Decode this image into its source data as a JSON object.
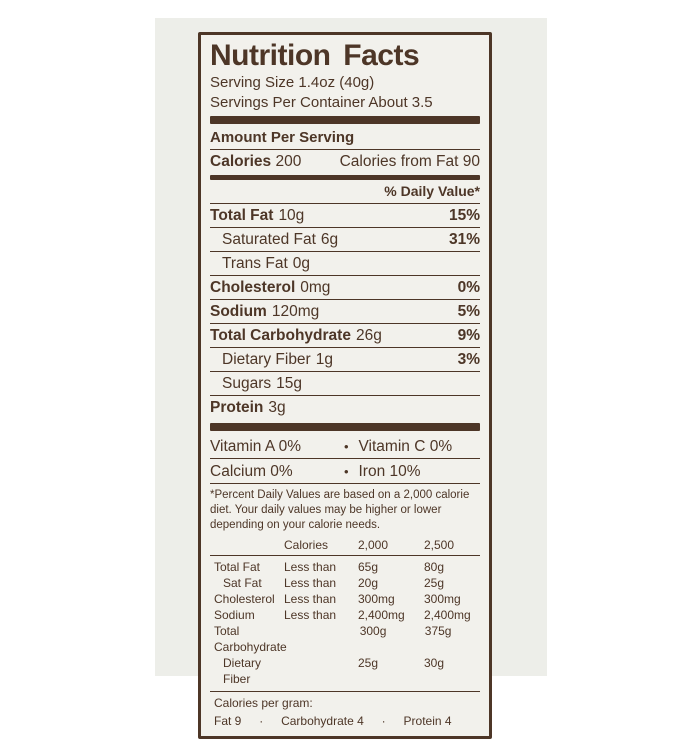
{
  "label": {
    "title": "Nutrition Facts",
    "serving_size": "Serving Size 1.4oz (40g)",
    "servings_per_container": "Servings Per Container About 3.5",
    "amount_per_serving": "Amount Per Serving",
    "calories_label": "Calories",
    "calories_value": "200",
    "calories_from_fat": "Calories from Fat 90",
    "daily_value_header": "% Daily Value*",
    "bullet": "•",
    "dot": "·",
    "nutrients": [
      {
        "name": "Total Fat",
        "amount": "10g",
        "dv": "15%"
      },
      {
        "name": "Saturated Fat",
        "amount": "6g",
        "dv": "31%"
      },
      {
        "name": "Trans Fat",
        "amount": "0g",
        "dv": ""
      },
      {
        "name": "Cholesterol",
        "amount": "0mg",
        "dv": "0%"
      },
      {
        "name": "Sodium",
        "amount": "120mg",
        "dv": "5%"
      },
      {
        "name": "Total Carbohydrate",
        "amount": "26g",
        "dv": "9%"
      },
      {
        "name": "Dietary Fiber",
        "amount": "1g",
        "dv": "3%"
      },
      {
        "name": "Sugars",
        "amount": "15g",
        "dv": ""
      },
      {
        "name": "Protein",
        "amount": "3g",
        "dv": ""
      }
    ],
    "vitamins": [
      {
        "left": "Vitamin A 0%",
        "right": "Vitamin C 0%"
      },
      {
        "left": "Calcium 0%",
        "right": "Iron 10%"
      }
    ],
    "footnote": "*Percent Daily Values are based on a 2,000 calorie diet. Your daily values may be higher or lower depending on your calorie needs.",
    "dv_table": {
      "header": [
        "Calories",
        "2,000",
        "2,500"
      ],
      "rows": [
        {
          "name": "Total Fat",
          "qualifier": "Less than",
          "v2000": "65g",
          "v2500": "80g"
        },
        {
          "name": "Sat Fat",
          "qualifier": "Less than",
          "v2000": "20g",
          "v2500": "25g"
        },
        {
          "name": "Cholesterol",
          "qualifier": "Less than",
          "v2000": "300mg",
          "v2500": "300mg"
        },
        {
          "name": "Sodium",
          "qualifier": "Less than",
          "v2000": "2,400mg",
          "v2500": "2,400mg"
        },
        {
          "name": "Total Carbohydrate",
          "qualifier": "",
          "v2000": "300g",
          "v2500": "375g"
        },
        {
          "name": "Dietary Fiber",
          "qualifier": "",
          "v2000": "25g",
          "v2500": "30g"
        }
      ]
    },
    "calories_per_gram": {
      "title": "Calories per gram:",
      "items": [
        "Fat 9",
        "Carbohydrate 4",
        "Protein 4"
      ]
    },
    "colors": {
      "ink": "#4d3627",
      "label_bg": "#f2f1ec",
      "photo_bg": "#edeee9",
      "page_bg": "#ffffff"
    }
  }
}
